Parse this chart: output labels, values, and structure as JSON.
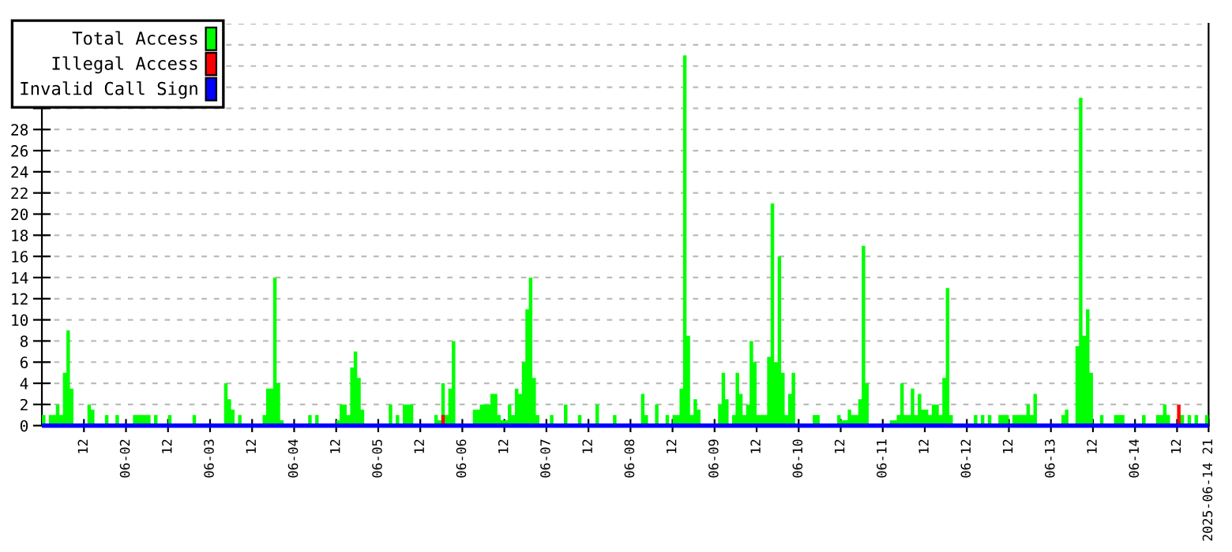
{
  "chart_data": {
    "type": "area",
    "legend": "top left",
    "grid": "y",
    "xlim": [
      "2025-06-01T00:00",
      "2025-06-14T21:00"
    ],
    "xticks": [
      {
        "value": "2025-06-01T12:00",
        "label": "12"
      },
      {
        "value": "2025-06-02T00:00",
        "label": "06-02"
      },
      {
        "value": "2025-06-02T12:00",
        "label": "12"
      },
      {
        "value": "2025-06-03T00:00",
        "label": "06-03"
      },
      {
        "value": "2025-06-03T12:00",
        "label": "12"
      },
      {
        "value": "2025-06-04T00:00",
        "label": "06-04"
      },
      {
        "value": "2025-06-04T12:00",
        "label": "12"
      },
      {
        "value": "2025-06-05T00:00",
        "label": "06-05"
      },
      {
        "value": "2025-06-05T12:00",
        "label": "12"
      },
      {
        "value": "2025-06-06T00:00",
        "label": "06-06"
      },
      {
        "value": "2025-06-06T12:00",
        "label": "12"
      },
      {
        "value": "2025-06-07T00:00",
        "label": "06-07"
      },
      {
        "value": "2025-06-07T12:00",
        "label": "12"
      },
      {
        "value": "2025-06-08T00:00",
        "label": "06-08"
      },
      {
        "value": "2025-06-08T12:00",
        "label": "12"
      },
      {
        "value": "2025-06-09T00:00",
        "label": "06-09"
      },
      {
        "value": "2025-06-09T12:00",
        "label": "12"
      },
      {
        "value": "2025-06-10T00:00",
        "label": "06-10"
      },
      {
        "value": "2025-06-10T12:00",
        "label": "12"
      },
      {
        "value": "2025-06-11T00:00",
        "label": "06-11"
      },
      {
        "value": "2025-06-11T12:00",
        "label": "12"
      },
      {
        "value": "2025-06-12T00:00",
        "label": "06-12"
      },
      {
        "value": "2025-06-12T12:00",
        "label": "12"
      },
      {
        "value": "2025-06-13T00:00",
        "label": "06-13"
      },
      {
        "value": "2025-06-13T12:00",
        "label": "12"
      },
      {
        "value": "2025-06-14T00:00",
        "label": "06-14"
      },
      {
        "value": "2025-06-14T12:00",
        "label": "12"
      },
      {
        "value": "2025-06-14T21:00",
        "label": "2025-06-14 21"
      }
    ],
    "ylim": [
      0,
      38
    ],
    "yticks": [
      0,
      2,
      4,
      6,
      8,
      10,
      12,
      14,
      16,
      18,
      20,
      22,
      24,
      26,
      28,
      {
        "value": 30,
        "label": null
      },
      {
        "value": 32,
        "label": null
      },
      {
        "value": 34,
        "label": null
      },
      {
        "value": 36,
        "label": null
      },
      {
        "value": 38,
        "label": null
      }
    ],
    "series": [
      {
        "name": "Total Access",
        "color": "#00ff00",
        "x": [
          "2025-06-01T00:00",
          "2025-06-01T01:00",
          "2025-06-01T02:00",
          "2025-06-01T04:00",
          "2025-06-01T05:00",
          "2025-06-01T06:00",
          "2025-06-01T07:00",
          "2025-06-01T08:00",
          "2025-06-01T09:00",
          "2025-06-01T13:00",
          "2025-06-01T14:00",
          "2025-06-01T15:00",
          "2025-06-01T18:00",
          "2025-06-01T19:00",
          "2025-06-01T21:00",
          "2025-06-01T22:00",
          "2025-06-02T02:00",
          "2025-06-02T06:00",
          "2025-06-02T07:00",
          "2025-06-02T08:00",
          "2025-06-02T09:00",
          "2025-06-02T12:00",
          "2025-06-02T13:00",
          "2025-06-02T19:00",
          "2025-06-02T20:00",
          "2025-06-03T04:00",
          "2025-06-03T05:00",
          "2025-06-03T06:00",
          "2025-06-03T07:00",
          "2025-06-03T08:00",
          "2025-06-03T09:00",
          "2025-06-03T15:00",
          "2025-06-03T16:00",
          "2025-06-03T18:00",
          "2025-06-03T19:00",
          "2025-06-03T20:00",
          "2025-06-03T21:00",
          "2025-06-04T04:00",
          "2025-06-04T05:00",
          "2025-06-04T06:00",
          "2025-06-04T07:00",
          "2025-06-04T12:00",
          "2025-06-04T13:00",
          "2025-06-04T15:00",
          "2025-06-04T16:00",
          "2025-06-04T17:00",
          "2025-06-04T18:00",
          "2025-06-04T19:00",
          "2025-06-04T20:00",
          "2025-06-05T03:00",
          "2025-06-05T04:00",
          "2025-06-05T05:00",
          "2025-06-05T06:00",
          "2025-06-05T07:00",
          "2025-06-05T10:00",
          "2025-06-05T16:00",
          "2025-06-05T17:00",
          "2025-06-05T18:00",
          "2025-06-05T19:00",
          "2025-06-05T20:00",
          "2025-06-05T21:00",
          "2025-06-05T22:00",
          "2025-06-06T03:00",
          "2025-06-06T05:00",
          "2025-06-06T08:00",
          "2025-06-06T10:00",
          "2025-06-06T11:00",
          "2025-06-06T13:00",
          "2025-06-06T14:00",
          "2025-06-06T15:00",
          "2025-06-06T16:00",
          "2025-06-06T17:00",
          "2025-06-06T18:00",
          "2025-06-06T19:00",
          "2025-06-06T20:00",
          "2025-06-06T21:00",
          "2025-06-06T22:00",
          "2025-06-07T01:00",
          "2025-06-07T02:00",
          "2025-06-07T05:00",
          "2025-06-07T06:00",
          "2025-06-07T09:00",
          "2025-06-07T10:00",
          "2025-06-07T14:00",
          "2025-06-07T15:00",
          "2025-06-07T19:00",
          "2025-06-07T20:00",
          "2025-06-08T03:00",
          "2025-06-08T04:00",
          "2025-06-08T05:00",
          "2025-06-08T07:00",
          "2025-06-08T08:00",
          "2025-06-08T10:00",
          "2025-06-08T11:00",
          "2025-06-08T12:00",
          "2025-06-08T14:00",
          "2025-06-08T15:00",
          "2025-06-08T16:00",
          "2025-06-08T17:00",
          "2025-06-08T18:00",
          "2025-06-08T19:00",
          "2025-06-08T20:00",
          "2025-06-09T01:00",
          "2025-06-09T02:00",
          "2025-06-09T03:00",
          "2025-06-09T04:00",
          "2025-06-09T05:00",
          "2025-06-09T06:00",
          "2025-06-09T07:00",
          "2025-06-09T08:00",
          "2025-06-09T09:00",
          "2025-06-09T10:00",
          "2025-06-09T11:00",
          "2025-06-09T12:00",
          "2025-06-09T15:00",
          "2025-06-09T16:00",
          "2025-06-09T17:00",
          "2025-06-09T18:00",
          "2025-06-09T19:00",
          "2025-06-09T20:00",
          "2025-06-09T21:00",
          "2025-06-09T22:00",
          "2025-06-09T23:00",
          "2025-06-10T04:00",
          "2025-06-10T06:00",
          "2025-06-10T11:00",
          "2025-06-10T12:00",
          "2025-06-10T14:00",
          "2025-06-10T15:00",
          "2025-06-10T17:00",
          "2025-06-10T18:00",
          "2025-06-10T19:00",
          "2025-06-10T20:00",
          "2025-06-11T02:00",
          "2025-06-11T04:00",
          "2025-06-11T05:00",
          "2025-06-11T06:00",
          "2025-06-11T08:00",
          "2025-06-11T09:00",
          "2025-06-11T10:00",
          "2025-06-11T11:00",
          "2025-06-11T13:00",
          "2025-06-11T14:00",
          "2025-06-11T16:00",
          "2025-06-11T17:00",
          "2025-06-11T18:00",
          "2025-06-11T19:00",
          "2025-06-11T20:00",
          "2025-06-12T02:00",
          "2025-06-12T03:00",
          "2025-06-12T04:00",
          "2025-06-12T05:00",
          "2025-06-12T06:00",
          "2025-06-12T07:00",
          "2025-06-12T09:00",
          "2025-06-12T12:00",
          "2025-06-12T13:00",
          "2025-06-12T17:00",
          "2025-06-12T18:00",
          "2025-06-12T19:00",
          "2025-06-12T20:00",
          "2025-06-13T03:00",
          "2025-06-13T04:00",
          "2025-06-13T05:00",
          "2025-06-13T07:00",
          "2025-06-13T08:00",
          "2025-06-13T09:00",
          "2025-06-13T10:00",
          "2025-06-13T11:00",
          "2025-06-13T12:00",
          "2025-06-13T14:00",
          "2025-06-13T15:00",
          "2025-06-13T18:00",
          "2025-06-13T21:00",
          "2025-06-14T02:00",
          "2025-06-14T03:00",
          "2025-06-14T06:00",
          "2025-06-14T08:00",
          "2025-06-14T09:00",
          "2025-06-14T10:00",
          "2025-06-14T11:00",
          "2025-06-14T12:00",
          "2025-06-14T13:00",
          "2025-06-14T14:00",
          "2025-06-14T15:00",
          "2025-06-14T16:00",
          "2025-06-14T17:00",
          "2025-06-14T18:00",
          "2025-06-14T20:00",
          "2025-06-14T21:00"
        ],
        "values": [
          1,
          0,
          1,
          2,
          1,
          5,
          9,
          3.5,
          0,
          2,
          1.5,
          0,
          1,
          0,
          1,
          0,
          1,
          1,
          0,
          1,
          0,
          1,
          0,
          1,
          0,
          4,
          2.5,
          1.5,
          0,
          1,
          0,
          1,
          3.5,
          14,
          4,
          0.5,
          0,
          1,
          0,
          1,
          0,
          0.5,
          2,
          1,
          5.5,
          7,
          4.5,
          1.5,
          0,
          2,
          0,
          1,
          0,
          2,
          0,
          1,
          0.5,
          4,
          1,
          3.5,
          8,
          0,
          1.5,
          2,
          3,
          1,
          0.5,
          2,
          1,
          3.5,
          3,
          6,
          11,
          14,
          4.5,
          1,
          0,
          1,
          0,
          2,
          0,
          1,
          0,
          2,
          0,
          1,
          0,
          3,
          1,
          0,
          2,
          0,
          1,
          0,
          1,
          3.5,
          35,
          8.5,
          1,
          2.5,
          1.5,
          0,
          2,
          5,
          2.5,
          0,
          1,
          5,
          3,
          1,
          2,
          8,
          6,
          1,
          6.5,
          21,
          6,
          16,
          5,
          1,
          3,
          5,
          0,
          1,
          0,
          1,
          0.5,
          1.5,
          1,
          2.5,
          17,
          4,
          0,
          0.5,
          1,
          4,
          1,
          3.5,
          1,
          3,
          1.5,
          1,
          2,
          1,
          4.5,
          13,
          1,
          0,
          1,
          0,
          1,
          0,
          1,
          0,
          1,
          0,
          1,
          2,
          1,
          3,
          0,
          1,
          1.5,
          0,
          7.5,
          31,
          8.5,
          11,
          5,
          0,
          1,
          0,
          1,
          0,
          1,
          0,
          1,
          2,
          1,
          0,
          1,
          null,
          1,
          0,
          1,
          0,
          1,
          0,
          1,
          0
        ]
      },
      {
        "name": "Illegal Access",
        "color": "#ff0000",
        "x": [
          "2025-06-05T18:00",
          "2025-06-05T19:00",
          "2025-06-14T12:00",
          "2025-06-14T13:00"
        ],
        "values": [
          1,
          0,
          2,
          0
        ]
      },
      {
        "name": "Invalid Call Sign",
        "color": "#0000ff",
        "type": "line",
        "x": [
          "2025-06-01T00:00",
          "2025-06-14T21:00"
        ],
        "values": [
          0,
          0
        ]
      }
    ]
  }
}
